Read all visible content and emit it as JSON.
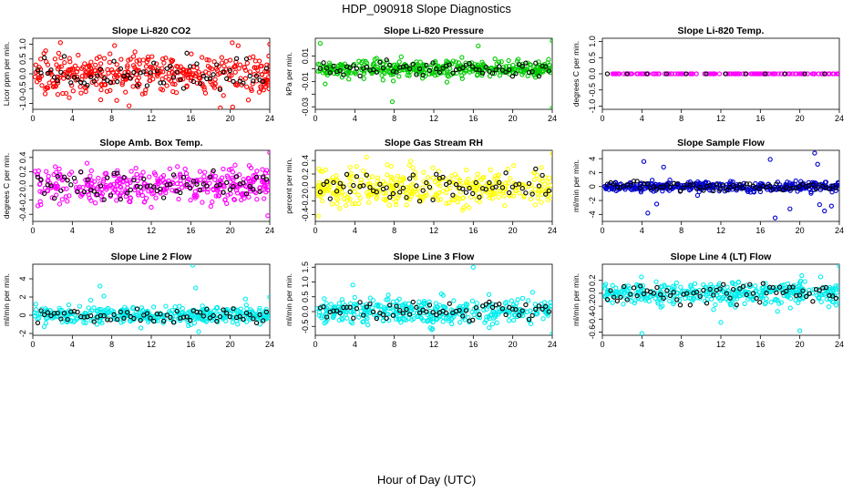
{
  "figure_title": "HDP_090918  Slope Diagnostics",
  "xlabel": "Hour of Day (UTC)",
  "chart_data": [
    {
      "id": "co2",
      "type": "scatter",
      "title": "Slope Li-820 CO2",
      "ylabel": "Licor ppm per min.",
      "color": "#ff0000",
      "xlim": [
        0,
        24
      ],
      "xticks": [
        0,
        4,
        8,
        12,
        16,
        20,
        24
      ],
      "ylim": [
        -1.2,
        1.2
      ],
      "yticks": [
        -1.0,
        -0.5,
        0.0,
        0.5,
        1.0
      ],
      "yticklabels": [
        "-1.0",
        "-0.5",
        "0.0",
        "0.5",
        "1.0"
      ],
      "spread": 0.32,
      "n": 380,
      "outliers": [
        [
          19,
          -1.15
        ],
        [
          20.2,
          1.05
        ],
        [
          20.8,
          0.95
        ],
        [
          24,
          1.0
        ],
        [
          8.5,
          -0.9
        ]
      ]
    },
    {
      "id": "pressure",
      "type": "scatter",
      "title": "Slope Li-820 Pressure",
      "ylabel": "kPa per min.",
      "color": "#00cc00",
      "xlim": [
        0,
        24
      ],
      "xticks": [
        0,
        4,
        8,
        12,
        16,
        20,
        24
      ],
      "ylim": [
        -0.032,
        0.024
      ],
      "yticks": [
        -0.03,
        -0.02,
        -0.01,
        0.0,
        0.01
      ],
      "yticklabels": [
        "-0.03",
        "",
        "-0.01",
        "",
        "0.01"
      ],
      "spread": 0.0035,
      "n": 380,
      "outliers": [
        [
          0.5,
          0.02
        ],
        [
          7.8,
          -0.026
        ],
        [
          24,
          -0.031
        ],
        [
          24,
          0.022
        ],
        [
          16.5,
          0.018
        ],
        [
          1,
          -0.012
        ]
      ]
    },
    {
      "id": "temp",
      "type": "scatter",
      "title": "Slope Li-820 Temp.",
      "ylabel": "degrees C per min.",
      "color": "#ff00ff",
      "xlim": [
        0,
        24
      ],
      "xticks": [
        0,
        4,
        8,
        12,
        16,
        20,
        24
      ],
      "ylim": [
        -1.1,
        1.1
      ],
      "yticks": [
        -1.0,
        -0.5,
        0.0,
        0.5,
        1.0
      ],
      "yticklabels": [
        "-1.0",
        "-0.5",
        "0.0",
        "0.5",
        "1.0"
      ],
      "spread": 0.0,
      "n": 150,
      "outliers": []
    },
    {
      "id": "ambbox",
      "type": "scatter",
      "title": "Slope Amb. Box Temp.",
      "ylabel": "degrees C per min.",
      "color": "#ff00ff",
      "xlim": [
        0,
        24
      ],
      "xticks": [
        0,
        4,
        8,
        12,
        16,
        20,
        24
      ],
      "ylim": [
        -0.5,
        0.5
      ],
      "yticks": [
        -0.4,
        -0.2,
        0.0,
        0.2,
        0.4
      ],
      "yticklabels": [
        "-0.4",
        "-0.2",
        "0.0",
        "0.2",
        "0.4"
      ],
      "spread": 0.12,
      "n": 380,
      "outliers": [
        [
          24,
          0.47
        ],
        [
          23.8,
          -0.42
        ],
        [
          12,
          -0.3
        ]
      ]
    },
    {
      "id": "rh",
      "type": "scatter",
      "title": "Slope Gas Stream RH",
      "ylabel": "percent per min.",
      "color": "#ffff00",
      "xlim": [
        0,
        24
      ],
      "xticks": [
        0,
        4,
        8,
        12,
        16,
        20,
        24
      ],
      "ylim": [
        -0.5,
        0.55
      ],
      "yticks": [
        -0.4,
        -0.2,
        0.0,
        0.2,
        0.4
      ],
      "yticklabels": [
        "-0.4",
        "-0.2",
        "0.0",
        "0.2",
        "0.4"
      ],
      "spread": 0.14,
      "n": 380,
      "outliers": [
        [
          24,
          0.5
        ],
        [
          0.3,
          -0.42
        ]
      ]
    },
    {
      "id": "sampleflow",
      "type": "scatter",
      "title": "Slope Sample Flow",
      "ylabel": "ml/min per min.",
      "color": "#0000cc",
      "xlim": [
        0,
        24
      ],
      "xticks": [
        0,
        4,
        8,
        12,
        16,
        20,
        24
      ],
      "ylim": [
        -5,
        5.2
      ],
      "yticks": [
        -4,
        -2,
        0,
        2,
        4
      ],
      "yticklabels": [
        "-4",
        "-2",
        "0",
        "2",
        "4"
      ],
      "spread": 0.35,
      "n": 380,
      "outliers": [
        [
          4.2,
          3.6
        ],
        [
          4.6,
          -3.8
        ],
        [
          5.5,
          -2.5
        ],
        [
          6.2,
          2.8
        ],
        [
          17.5,
          -4.5
        ],
        [
          21.5,
          4.8
        ],
        [
          22,
          -2.6
        ],
        [
          21.8,
          3.2
        ],
        [
          22.5,
          -3.5
        ],
        [
          23.2,
          -2.8
        ],
        [
          17,
          3.9
        ],
        [
          19,
          -3.2
        ]
      ]
    },
    {
      "id": "line2",
      "type": "scatter",
      "title": "Slope Line 2 Flow",
      "ylabel": "ml/min per min.",
      "color": "#00eeee",
      "xlim": [
        0,
        24
      ],
      "xticks": [
        0,
        4,
        8,
        12,
        16,
        20,
        24
      ],
      "ylim": [
        -2.2,
        5.6
      ],
      "yticks": [
        -2,
        0,
        2,
        4
      ],
      "yticklabels": [
        "-2",
        "0",
        "2",
        "4"
      ],
      "spread": 0.45,
      "n": 380,
      "outliers": [
        [
          16.2,
          5.5
        ],
        [
          16.8,
          -1.8
        ],
        [
          6.8,
          3.2
        ],
        [
          7.2,
          2.1
        ],
        [
          16.5,
          3.0
        ],
        [
          24,
          2.0
        ],
        [
          6.5,
          -1.0
        ]
      ]
    },
    {
      "id": "line3",
      "type": "scatter",
      "title": "Slope Line 3 Flow",
      "ylabel": "ml/min per min.",
      "color": "#00eeee",
      "xlim": [
        0,
        24
      ],
      "xticks": [
        0,
        4,
        8,
        12,
        16,
        20,
        24
      ],
      "ylim": [
        -0.8,
        1.6
      ],
      "yticks": [
        -0.5,
        0.0,
        0.5,
        1.0,
        1.5
      ],
      "yticklabels": [
        "-0.5",
        "0.0",
        "0.5",
        "1.0",
        "1.5"
      ],
      "spread": 0.2,
      "n": 380,
      "outliers": [
        [
          16,
          1.5
        ],
        [
          3.8,
          0.9
        ],
        [
          24,
          -0.75
        ],
        [
          22,
          0.65
        ]
      ]
    },
    {
      "id": "line4",
      "type": "scatter",
      "title": "Slope Line 4 (LT) Flow",
      "ylabel": "ml/min per min.",
      "color": "#00eeee",
      "xlim": [
        0,
        24
      ],
      "xticks": [
        0,
        4,
        8,
        12,
        16,
        20,
        24
      ],
      "ylim": [
        -0.65,
        0.45
      ],
      "yticks": [
        -0.6,
        -0.4,
        -0.2,
        0.0,
        0.2
      ],
      "yticklabels": [
        "-0.6",
        "-0.4",
        "-0.2",
        "0.0",
        "0.2"
      ],
      "spread": 0.09,
      "n": 380,
      "outliers": [
        [
          4,
          -0.62
        ],
        [
          20,
          -0.58
        ],
        [
          24,
          0.42
        ],
        [
          12,
          -0.45
        ]
      ]
    }
  ]
}
